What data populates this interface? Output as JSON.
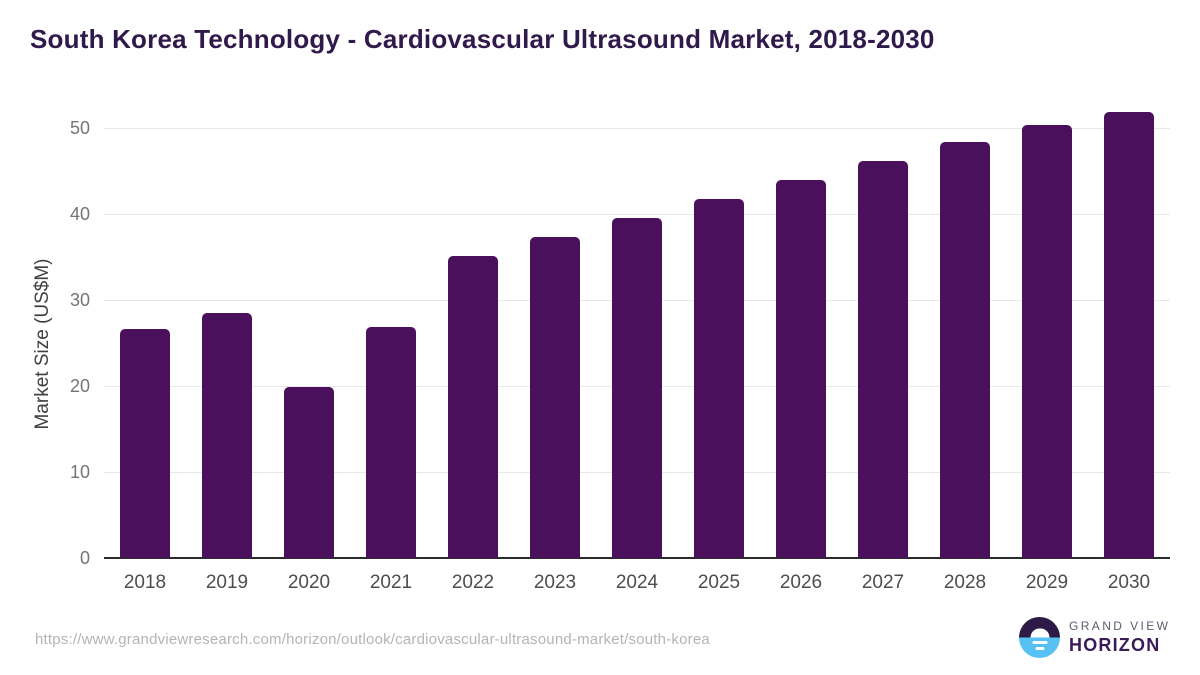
{
  "title": "South Korea Technology - Cardiovascular Ultrasound Market, 2018-2030",
  "footer": {
    "source_url": "https://www.grandviewresearch.com/horizon/outlook/cardiovascular-ultrasound-market/south-korea",
    "logo": {
      "line1": "GRAND VIEW",
      "line2": "HORIZON"
    }
  },
  "colors": {
    "bar": "#4a105c",
    "title": "#30194b",
    "axis_line": "#2b2b2b",
    "gridline": "#e8e8ea",
    "y_tick_label": "#757575",
    "x_label": "#4d4d4d",
    "y_axis_title": "#404040",
    "url_text": "#b4b4b4",
    "logo_dark": "#2e1a47",
    "logo_blue": "#56c1f2",
    "logo_text_gray": "#5f5a6e",
    "logo_text_purple": "#3a1b58"
  },
  "chart_data": {
    "type": "bar",
    "title": "South Korea Technology - Cardiovascular Ultrasound Market, 2018-2030",
    "categories": [
      "2018",
      "2019",
      "2020",
      "2021",
      "2022",
      "2023",
      "2024",
      "2025",
      "2026",
      "2027",
      "2028",
      "2029",
      "2030"
    ],
    "values": [
      26.6,
      28.5,
      19.9,
      26.9,
      35.1,
      37.3,
      39.5,
      41.8,
      44.0,
      46.2,
      48.4,
      50.4,
      51.9
    ],
    "xlabel": "",
    "ylabel": "Market Size (US$M)",
    "ylim": [
      0,
      52
    ],
    "y_ticks": [
      0,
      10,
      20,
      30,
      40,
      50
    ],
    "grid": "horizontal-only",
    "legend": "none",
    "bar_color": "#4a105c"
  }
}
